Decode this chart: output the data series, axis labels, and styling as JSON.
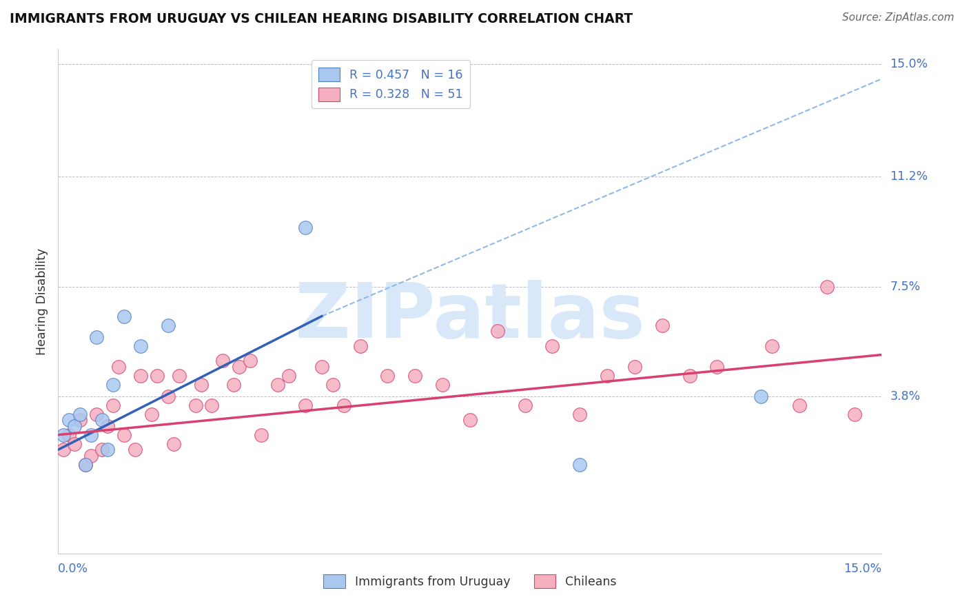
{
  "title": "IMMIGRANTS FROM URUGUAY VS CHILEAN HEARING DISABILITY CORRELATION CHART",
  "source": "Source: ZipAtlas.com",
  "xlabel_bottom_left": "0.0%",
  "xlabel_bottom_right": "15.0%",
  "ylabel": "Hearing Disability",
  "xmin": 0.0,
  "xmax": 15.0,
  "ymin": -1.5,
  "ymax": 15.5,
  "yticks": [
    3.8,
    7.5,
    11.2,
    15.0
  ],
  "ytick_labels": [
    "3.8%",
    "7.5%",
    "11.2%",
    "15.0%"
  ],
  "legend_line1": "R = 0.457   N = 16",
  "legend_line2": "R = 0.328   N = 51",
  "uruguay_color": "#A8C8F0",
  "chilean_color": "#F5B0C0",
  "uruguay_edge_color": "#5080C0",
  "chilean_edge_color": "#D84070",
  "uruguay_line_color": "#3060B8",
  "chilean_line_color": "#D84070",
  "dashed_line_color": "#90B8E8",
  "watermark_color": "#D8E8F8",
  "uruguay_x": [
    0.1,
    0.2,
    0.3,
    0.4,
    0.5,
    0.6,
    0.7,
    0.8,
    0.9,
    1.0,
    1.2,
    1.5,
    2.0,
    4.5,
    9.5,
    12.8
  ],
  "uruguay_y": [
    2.5,
    3.0,
    2.8,
    3.2,
    1.5,
    2.5,
    5.8,
    3.0,
    2.0,
    4.2,
    6.5,
    5.5,
    6.2,
    9.5,
    1.5,
    3.8
  ],
  "chilean_x": [
    0.1,
    0.2,
    0.3,
    0.4,
    0.5,
    0.6,
    0.7,
    0.8,
    0.9,
    1.0,
    1.1,
    1.2,
    1.4,
    1.5,
    1.7,
    1.8,
    2.0,
    2.1,
    2.2,
    2.5,
    2.6,
    2.8,
    3.0,
    3.2,
    3.3,
    3.5,
    3.7,
    4.0,
    4.2,
    4.5,
    4.8,
    5.0,
    5.2,
    5.5,
    6.0,
    6.5,
    7.0,
    7.5,
    8.0,
    8.5,
    9.0,
    9.5,
    10.0,
    10.5,
    11.0,
    11.5,
    12.0,
    13.0,
    13.5,
    14.0,
    14.5
  ],
  "chilean_y": [
    2.0,
    2.5,
    2.2,
    3.0,
    1.5,
    1.8,
    3.2,
    2.0,
    2.8,
    3.5,
    4.8,
    2.5,
    2.0,
    4.5,
    3.2,
    4.5,
    3.8,
    2.2,
    4.5,
    3.5,
    4.2,
    3.5,
    5.0,
    4.2,
    4.8,
    5.0,
    2.5,
    4.2,
    4.5,
    3.5,
    4.8,
    4.2,
    3.5,
    5.5,
    4.5,
    4.5,
    4.2,
    3.0,
    6.0,
    3.5,
    5.5,
    3.2,
    4.5,
    4.8,
    6.2,
    4.5,
    4.8,
    5.5,
    3.5,
    7.5,
    3.2
  ],
  "uru_line_x0": 0.0,
  "uru_line_y0": 2.0,
  "uru_line_x1": 4.8,
  "uru_line_y1": 6.5,
  "chi_line_x0": 0.0,
  "chi_line_y0": 2.5,
  "chi_line_x1": 15.0,
  "chi_line_y1": 5.2,
  "dash_x0": 4.8,
  "dash_y0": 6.5,
  "dash_x1": 15.0,
  "dash_y1": 14.5
}
